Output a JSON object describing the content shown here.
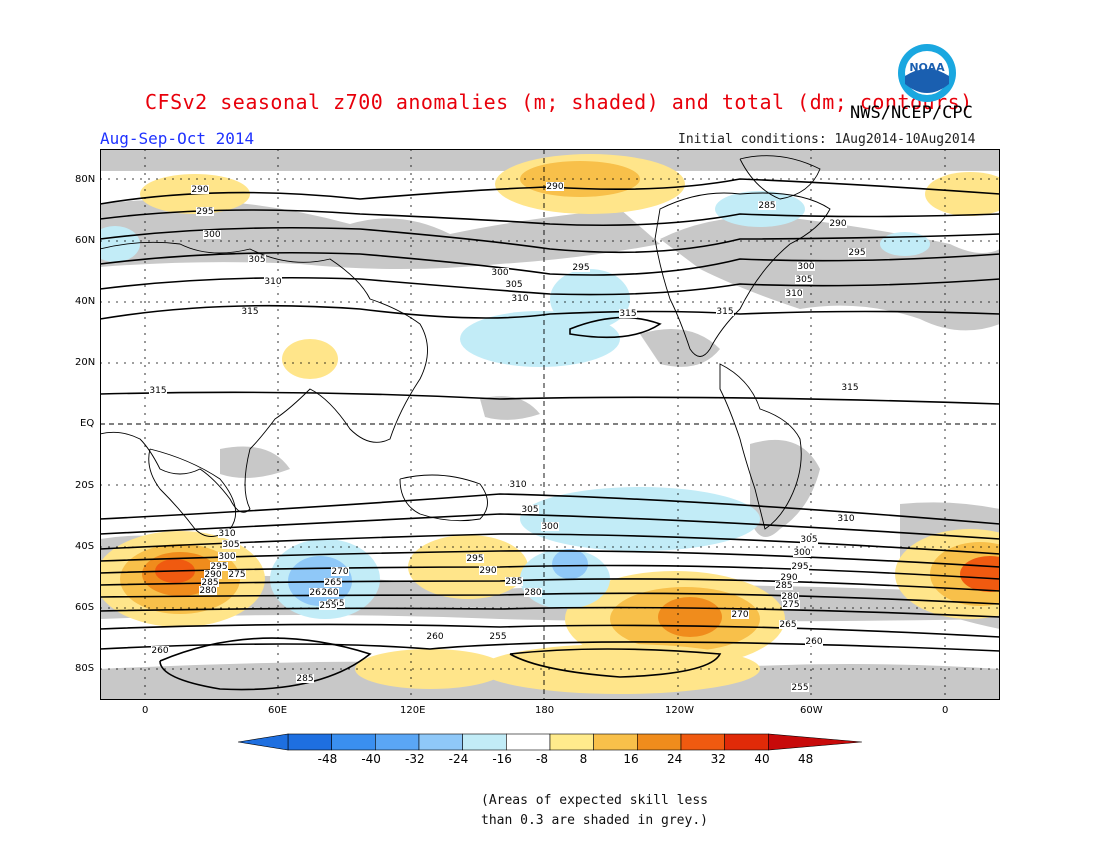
{
  "title": "CFSv2 seasonal z700 anomalies (m; shaded) and total (dm; contours)",
  "agency": "NWS/NCEP/CPC",
  "period": "Aug-Sep-Oct 2014",
  "initial_conditions": "Initial conditions: 1Aug2014-10Aug2014",
  "logo_text": "NOAA",
  "lat_labels": [
    "80N",
    "60N",
    "40N",
    "20N",
    "EQ",
    "20S",
    "40S",
    "60S",
    "80S"
  ],
  "lon_labels": [
    "0",
    "60E",
    "120E",
    "180",
    "120W",
    "60W",
    "0"
  ],
  "colorbar": {
    "labels": [
      "-48",
      "-40",
      "-32",
      "-24",
      "-16",
      "-8",
      "8",
      "16",
      "24",
      "32",
      "40",
      "48"
    ],
    "colors": [
      "#1e6fe0",
      "#3a8ff0",
      "#5aa6f5",
      "#8fc8f8",
      "#c2ecf7",
      "#ffffff",
      "#ffeb8c",
      "#f8c04a",
      "#f08c1c",
      "#f05a10",
      "#e02a08",
      "#c80a0a"
    ]
  },
  "skill_note": [
    "(Areas of expected skill less",
    "than 0.3 are shaded in grey.)"
  ],
  "contour_labels": [
    {
      "text": "290"
    },
    {
      "text": "295"
    },
    {
      "text": "300"
    },
    {
      "text": "305"
    },
    {
      "text": "310"
    },
    {
      "text": "315"
    },
    {
      "text": "290"
    },
    {
      "text": "300"
    },
    {
      "text": "305"
    },
    {
      "text": "310"
    },
    {
      "text": "315"
    },
    {
      "text": "295"
    },
    {
      "text": "285"
    },
    {
      "text": "290"
    },
    {
      "text": "295"
    },
    {
      "text": "300"
    },
    {
      "text": "305"
    },
    {
      "text": "310"
    },
    {
      "text": "315"
    },
    {
      "text": "315"
    },
    {
      "text": "315"
    },
    {
      "text": "310"
    },
    {
      "text": "305"
    },
    {
      "text": "300"
    },
    {
      "text": "295"
    },
    {
      "text": "290"
    },
    {
      "text": "285"
    },
    {
      "text": "280"
    },
    {
      "text": "270"
    },
    {
      "text": "260"
    },
    {
      "text": "255"
    },
    {
      "text": "260"
    },
    {
      "text": "255"
    },
    {
      "text": "265"
    },
    {
      "text": "260"
    },
    {
      "text": "285"
    },
    {
      "text": "255"
    },
    {
      "text": "310"
    },
    {
      "text": "305"
    },
    {
      "text": "300"
    },
    {
      "text": "295"
    },
    {
      "text": "290"
    },
    {
      "text": "285"
    },
    {
      "text": "280"
    },
    {
      "text": "275"
    },
    {
      "text": "310"
    },
    {
      "text": "305"
    },
    {
      "text": "300"
    },
    {
      "text": "295"
    },
    {
      "text": "290"
    },
    {
      "text": "285"
    },
    {
      "text": "280"
    },
    {
      "text": "275"
    },
    {
      "text": "270"
    },
    {
      "text": "265"
    },
    {
      "text": "260"
    },
    {
      "text": "255"
    },
    {
      "text": "260"
    },
    {
      "text": "265"
    },
    {
      "text": "270"
    },
    {
      "text": "275"
    },
    {
      "text": "280"
    },
    {
      "text": "285"
    },
    {
      "text": "290"
    },
    {
      "text": "295"
    },
    {
      "text": "300"
    }
  ]
}
